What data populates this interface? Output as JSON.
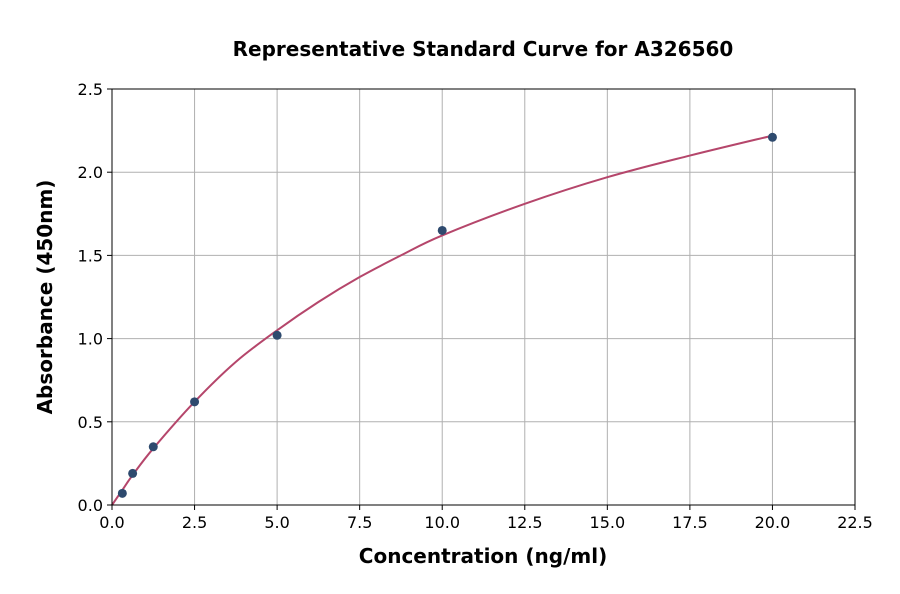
{
  "chart_data": {
    "type": "scatter",
    "title": "Representative Standard Curve for A326560",
    "xlabel": "Concentration (ng/ml)",
    "ylabel": "Absorbance (450nm)",
    "xlim": [
      0,
      22.5
    ],
    "ylim": [
      0,
      2.5
    ],
    "xticks": [
      0,
      2.5,
      5,
      7.5,
      10,
      12.5,
      15,
      17.5,
      20,
      22.5
    ],
    "xtick_labels": [
      "0.0",
      "2.5",
      "5.0",
      "7.5",
      "10.0",
      "12.5",
      "15.0",
      "17.5",
      "20.0",
      "22.5"
    ],
    "yticks": [
      0,
      0.5,
      1,
      1.5,
      2,
      2.5
    ],
    "ytick_labels": [
      "0.0",
      "0.5",
      "1.0",
      "1.5",
      "2.0",
      "2.5"
    ],
    "grid": true,
    "series": [
      {
        "type": "scatter",
        "color": "#2e4a6e",
        "x": [
          0.313,
          0.625,
          1.25,
          2.5,
          5,
          10,
          20
        ],
        "y": [
          0.07,
          0.19,
          0.35,
          0.62,
          1.02,
          1.65,
          2.21
        ]
      },
      {
        "type": "line",
        "color": "#b5466b",
        "x": [
          0,
          0.313,
          0.625,
          1.25,
          2.5,
          3.75,
          5,
          6.25,
          7.5,
          8.75,
          10,
          12.5,
          15,
          17.5,
          20
        ],
        "y": [
          0,
          0.09,
          0.18,
          0.34,
          0.62,
          0.86,
          1.05,
          1.22,
          1.37,
          1.5,
          1.62,
          1.81,
          1.97,
          2.1,
          2.22
        ]
      }
    ]
  }
}
